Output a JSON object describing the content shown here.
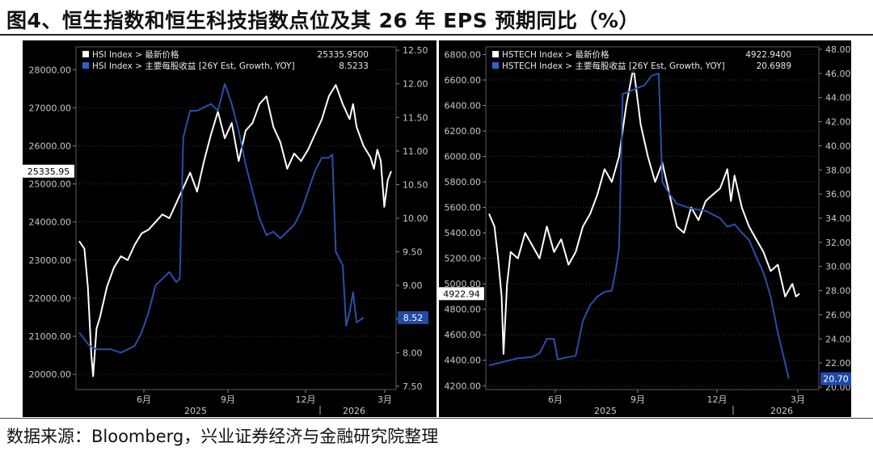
{
  "figure_title": "图4、恒生指数和恒生科技指数点位及其 26 年 EPS 预期同比（%）",
  "source_note": "数据来源：Bloomberg，兴业证券经济与金融研究院整理",
  "colors": {
    "background": "#000000",
    "price_line": "#ffffff",
    "eps_line": "#2a4fa8",
    "grid": "#3a3a3a",
    "axis_text": "#c8c8c8"
  },
  "chart_data": [
    {
      "type": "line",
      "title": "",
      "x_axis": {
        "month_labels": [
          "6月",
          "9月",
          "12月",
          "3月"
        ],
        "year_labels": [
          "2025",
          "2026"
        ]
      },
      "y_left": {
        "ticks": [
          "20000.00",
          "21000.00",
          "22000.00",
          "23000.00",
          "24000.00",
          "25000.00",
          "26000.00",
          "27000.00",
          "28000.00"
        ],
        "ylim": [
          19600,
          28600
        ],
        "current_label": "25335.95"
      },
      "y_right": {
        "ticks": [
          "7.50",
          "8.00",
          "8.50",
          "9.00",
          "9.50",
          "10.00",
          "10.50",
          "11.00",
          "11.50",
          "12.00",
          "12.50"
        ],
        "ylim": [
          7.45,
          12.55
        ],
        "current_label": "8.52"
      },
      "series": [
        {
          "name": "HSI Index > 最新价格",
          "last_value": "25335.9500",
          "axis": "left",
          "points": [
            [
              0,
              23500
            ],
            [
              1.5,
              23300
            ],
            [
              2.5,
              22300
            ],
            [
              3.5,
              20500
            ],
            [
              4,
              19950
            ],
            [
              5,
              21200
            ],
            [
              6,
              21500
            ],
            [
              8,
              22300
            ],
            [
              10,
              22800
            ],
            [
              12,
              23100
            ],
            [
              14,
              23000
            ],
            [
              16,
              23400
            ],
            [
              18,
              23700
            ],
            [
              20,
              23800
            ],
            [
              22,
              24000
            ],
            [
              24,
              24200
            ],
            [
              26,
              24100
            ],
            [
              28,
              24500
            ],
            [
              30,
              24900
            ],
            [
              32,
              25300
            ],
            [
              34,
              24800
            ],
            [
              36,
              25600
            ],
            [
              38,
              26300
            ],
            [
              40,
              26900
            ],
            [
              42,
              26200
            ],
            [
              44,
              26600
            ],
            [
              46,
              25600
            ],
            [
              48,
              26400
            ],
            [
              50,
              26600
            ],
            [
              52,
              27100
            ],
            [
              54,
              27300
            ],
            [
              56,
              26500
            ],
            [
              58,
              26100
            ],
            [
              60,
              25400
            ],
            [
              62,
              25800
            ],
            [
              64,
              25600
            ],
            [
              66,
              25900
            ],
            [
              68,
              26300
            ],
            [
              70,
              26700
            ],
            [
              72,
              27300
            ],
            [
              74,
              27600
            ],
            [
              76,
              27100
            ],
            [
              78,
              26700
            ],
            [
              79,
              27100
            ],
            [
              80,
              26500
            ],
            [
              82,
              26000
            ],
            [
              84,
              25700
            ],
            [
              85,
              25400
            ],
            [
              86,
              25900
            ],
            [
              87,
              25600
            ],
            [
              88,
              24400
            ],
            [
              89,
              25100
            ],
            [
              90,
              25336
            ]
          ]
        },
        {
          "name": "HSI Index > 主要每股收益 [26Y Est, Growth, YOY]",
          "last_value": "8.5233",
          "axis": "right",
          "points": [
            [
              0,
              8.3
            ],
            [
              3,
              8.1
            ],
            [
              5,
              8.05
            ],
            [
              9,
              8.05
            ],
            [
              12,
              8.0
            ],
            [
              16,
              8.1
            ],
            [
              18,
              8.3
            ],
            [
              20,
              8.6
            ],
            [
              22,
              9.0
            ],
            [
              24,
              9.1
            ],
            [
              26,
              9.2
            ],
            [
              28,
              9.05
            ],
            [
              29,
              9.1
            ],
            [
              30,
              11.2
            ],
            [
              32,
              11.6
            ],
            [
              34,
              11.6
            ],
            [
              36,
              11.65
            ],
            [
              38,
              11.7
            ],
            [
              40,
              11.6
            ],
            [
              42,
              12.0
            ],
            [
              44,
              11.7
            ],
            [
              46,
              11.3
            ],
            [
              48,
              10.8
            ],
            [
              50,
              10.4
            ],
            [
              52,
              10.0
            ],
            [
              54,
              9.75
            ],
            [
              56,
              9.8
            ],
            [
              58,
              9.7
            ],
            [
              60,
              9.8
            ],
            [
              62,
              9.9
            ],
            [
              64,
              10.1
            ],
            [
              66,
              10.4
            ],
            [
              68,
              10.7
            ],
            [
              70,
              10.9
            ],
            [
              72,
              10.9
            ],
            [
              73,
              10.95
            ],
            [
              74,
              9.5
            ],
            [
              76,
              9.3
            ],
            [
              77,
              8.4
            ],
            [
              78,
              8.6
            ],
            [
              79,
              8.9
            ],
            [
              80,
              8.45
            ],
            [
              82,
              8.52
            ]
          ]
        }
      ],
      "x_max": 90
    },
    {
      "type": "line",
      "title": "",
      "x_axis": {
        "month_labels": [
          "6月",
          "9月",
          "12月",
          "3月"
        ],
        "year_labels": [
          "2025",
          "2026"
        ]
      },
      "y_left": {
        "ticks": [
          "4200.00",
          "4400.00",
          "4600.00",
          "4800.00",
          "5000.00",
          "5200.00",
          "5400.00",
          "5600.00",
          "5800.00",
          "6000.00",
          "6200.00",
          "6400.00",
          "6600.00",
          "6800.00"
        ],
        "ylim": [
          4170,
          6860
        ],
        "current_label": "4922.94"
      },
      "y_right": {
        "ticks": [
          "20.00",
          "22.00",
          "24.00",
          "26.00",
          "28.00",
          "30.00",
          "32.00",
          "34.00",
          "36.00",
          "38.00",
          "40.00",
          "42.00",
          "44.00",
          "46.00",
          "48.00"
        ],
        "ylim": [
          19.8,
          48.2
        ],
        "current_label": "20.70"
      },
      "series": [
        {
          "name": "HSTECH Index > 最新价格",
          "last_value": "4922.9400",
          "axis": "left",
          "points": [
            [
              0,
              5550
            ],
            [
              1.5,
              5450
            ],
            [
              2.5,
              5200
            ],
            [
              3.5,
              4900
            ],
            [
              4,
              4450
            ],
            [
              5,
              5000
            ],
            [
              6,
              5250
            ],
            [
              8,
              5200
            ],
            [
              10,
              5400
            ],
            [
              12,
              5300
            ],
            [
              14,
              5200
            ],
            [
              16,
              5450
            ],
            [
              18,
              5250
            ],
            [
              20,
              5350
            ],
            [
              22,
              5150
            ],
            [
              24,
              5250
            ],
            [
              26,
              5450
            ],
            [
              28,
              5550
            ],
            [
              30,
              5700
            ],
            [
              32,
              5900
            ],
            [
              34,
              5800
            ],
            [
              36,
              6000
            ],
            [
              38,
              6400
            ],
            [
              40,
              6700
            ],
            [
              42,
              6250
            ],
            [
              44,
              6000
            ],
            [
              46,
              5800
            ],
            [
              48,
              5950
            ],
            [
              50,
              5700
            ],
            [
              52,
              5450
            ],
            [
              54,
              5400
            ],
            [
              56,
              5600
            ],
            [
              58,
              5500
            ],
            [
              60,
              5650
            ],
            [
              62,
              5700
            ],
            [
              64,
              5750
            ],
            [
              66,
              5900
            ],
            [
              67,
              5650
            ],
            [
              68,
              5850
            ],
            [
              70,
              5600
            ],
            [
              72,
              5450
            ],
            [
              74,
              5350
            ],
            [
              76,
              5250
            ],
            [
              78,
              5100
            ],
            [
              80,
              5150
            ],
            [
              82,
              4900
            ],
            [
              83,
              4950
            ],
            [
              84,
              5000
            ],
            [
              85,
              4900
            ],
            [
              86,
              4923
            ]
          ]
        },
        {
          "name": "HSTECH Index > 主要每股收益 [26Y Est, Growth, YOY]",
          "last_value": "20.6989",
          "axis": "right",
          "points": [
            [
              0,
              21.8
            ],
            [
              4,
              22.1
            ],
            [
              8,
              22.4
            ],
            [
              12,
              22.5
            ],
            [
              14,
              22.8
            ],
            [
              16,
              24.0
            ],
            [
              18,
              24.0
            ],
            [
              19,
              22.3
            ],
            [
              22,
              22.5
            ],
            [
              24,
              22.6
            ],
            [
              26,
              25.5
            ],
            [
              28,
              26.8
            ],
            [
              30,
              27.5
            ],
            [
              32,
              27.9
            ],
            [
              34,
              28.0
            ],
            [
              35,
              29.5
            ],
            [
              36,
              31.5
            ],
            [
              37,
              44.3
            ],
            [
              39,
              44.5
            ],
            [
              41,
              44.8
            ],
            [
              43,
              45.0
            ],
            [
              45,
              45.8
            ],
            [
              47,
              46.0
            ],
            [
              48,
              37.0
            ],
            [
              50,
              36.0
            ],
            [
              52,
              35.2
            ],
            [
              54,
              35.0
            ],
            [
              56,
              34.8
            ],
            [
              58,
              34.7
            ],
            [
              60,
              34.6
            ],
            [
              62,
              34.3
            ],
            [
              64,
              34.0
            ],
            [
              66,
              33.3
            ],
            [
              68,
              33.5
            ],
            [
              70,
              32.8
            ],
            [
              72,
              32.2
            ],
            [
              74,
              30.8
            ],
            [
              76,
              29.5
            ],
            [
              78,
              27.5
            ],
            [
              80,
              24.5
            ],
            [
              82,
              22.0
            ],
            [
              83,
              20.7
            ]
          ]
        }
      ],
      "x_max": 90
    }
  ]
}
